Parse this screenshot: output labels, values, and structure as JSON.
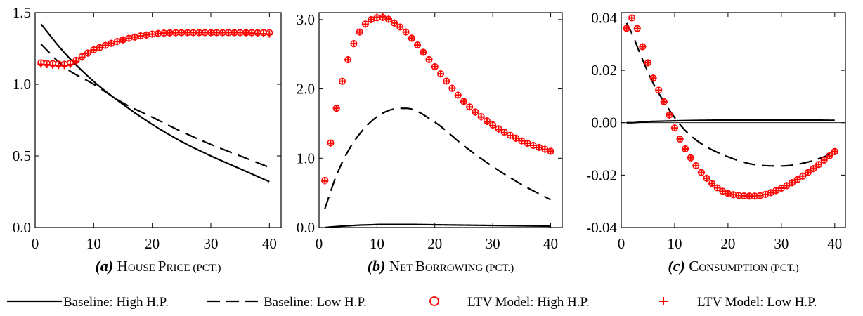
{
  "legend": [
    {
      "name": "Baseline: High H.P.",
      "style": "solid"
    },
    {
      "name": "Baseline: Low H.P.",
      "style": "dashed"
    },
    {
      "name": "LTV Model: High H.P.",
      "style": "circle"
    },
    {
      "name": "LTV Model: Low H.P.",
      "style": "plus"
    }
  ],
  "colors": {
    "baseline": "#000000",
    "ltv": "#ff0000"
  },
  "chart_data": [
    {
      "type": "line",
      "caption_letter": "(a)",
      "caption_big": [
        "H",
        "P"
      ],
      "caption_small": [
        "OUSE ",
        "RICE "
      ],
      "caption_tail": "(PCT.)",
      "xlim": [
        0,
        42
      ],
      "ylim": [
        0,
        1.5
      ],
      "xticks": [
        0,
        10,
        20,
        30,
        40
      ],
      "yticks": [
        0,
        0.5,
        1.0,
        1.5
      ],
      "ytick_labels": [
        "0.0",
        "0.5",
        "1.0",
        "1.5"
      ],
      "zero_line": false,
      "x": [
        1,
        5,
        10,
        15,
        20,
        25,
        30,
        35,
        40
      ],
      "series": [
        {
          "name": "Baseline: High H.P.",
          "values": [
            1.42,
            1.22,
            1.02,
            0.86,
            0.72,
            0.6,
            0.5,
            0.41,
            0.32
          ]
        },
        {
          "name": "Baseline: Low H.P.",
          "values": [
            1.28,
            1.12,
            1.0,
            0.87,
            0.77,
            0.67,
            0.58,
            0.5,
            0.42
          ]
        },
        {
          "name": "LTV Model: High H.P.",
          "values": [
            1.15,
            1.14,
            1.24,
            1.31,
            1.35,
            1.36,
            1.36,
            1.36,
            1.36
          ]
        },
        {
          "name": "LTV Model: Low H.P.",
          "values": [
            1.14,
            1.13,
            1.24,
            1.31,
            1.35,
            1.36,
            1.36,
            1.36,
            1.35
          ]
        }
      ]
    },
    {
      "type": "line",
      "caption_letter": "(b)",
      "caption_big": [
        "N",
        "B"
      ],
      "caption_small": [
        "ET ",
        "ORROWING "
      ],
      "caption_tail": "(PCT.)",
      "xlim": [
        0,
        42
      ],
      "ylim": [
        0,
        3.1
      ],
      "xticks": [
        0,
        10,
        20,
        30,
        40
      ],
      "yticks": [
        0,
        1.0,
        2.0,
        3.0
      ],
      "ytick_labels": [
        "0.0",
        "1.0",
        "2.0",
        "3.0"
      ],
      "zero_line": false,
      "x": [
        1,
        3,
        5,
        7,
        9,
        11,
        13,
        15,
        20,
        25,
        30,
        35,
        40
      ],
      "series": [
        {
          "name": "Baseline: High H.P.",
          "values": [
            0.0,
            0.015,
            0.025,
            0.035,
            0.04,
            0.045,
            0.045,
            0.045,
            0.04,
            0.035,
            0.03,
            0.025,
            0.02
          ]
        },
        {
          "name": "Baseline: Low H.P.",
          "values": [
            0.27,
            0.75,
            1.1,
            1.35,
            1.53,
            1.65,
            1.71,
            1.72,
            1.52,
            1.18,
            0.88,
            0.62,
            0.4
          ]
        },
        {
          "name": "LTV Model: High H.P.",
          "values": [
            0.68,
            1.72,
            2.42,
            2.82,
            3.0,
            3.03,
            2.95,
            2.82,
            2.32,
            1.82,
            1.48,
            1.25,
            1.1
          ]
        },
        {
          "name": "LTV Model: Low H.P.",
          "values": [
            0.67,
            1.72,
            2.42,
            2.82,
            3.0,
            3.04,
            2.95,
            2.82,
            2.32,
            1.82,
            1.47,
            1.25,
            1.1
          ]
        }
      ]
    },
    {
      "type": "line",
      "caption_letter": "(c)",
      "caption_big": [
        "C"
      ],
      "caption_small": [
        "ONSUMPTION "
      ],
      "caption_tail": "(PCT.)",
      "xlim": [
        0,
        42
      ],
      "ylim": [
        -0.04,
        0.042
      ],
      "xticks": [
        0,
        10,
        20,
        30,
        40
      ],
      "yticks": [
        -0.04,
        -0.02,
        0,
        0.02,
        0.04
      ],
      "ytick_labels": [
        "-0.04",
        "-0.02",
        "0.00",
        "0.02",
        "0.04"
      ],
      "zero_line": true,
      "x": [
        1,
        2,
        4,
        6,
        8,
        10,
        12,
        15,
        20,
        25,
        30,
        35,
        40
      ],
      "series": [
        {
          "name": "Baseline: High H.P.",
          "values": [
            0.0,
            0.0,
            0.0003,
            0.0005,
            0.0006,
            0.0007,
            0.0008,
            0.0009,
            0.001,
            0.001,
            0.001,
            0.001,
            0.0009
          ]
        },
        {
          "name": "Baseline: Low H.P.",
          "values": [
            0.038,
            0.034,
            0.024,
            0.015,
            0.008,
            0.002,
            -0.003,
            -0.008,
            -0.013,
            -0.016,
            -0.0165,
            -0.015,
            -0.0115
          ]
        },
        {
          "name": "LTV Model: High H.P.",
          "values": [
            0.036,
            0.04,
            0.029,
            0.017,
            0.008,
            -0.002,
            -0.01,
            -0.019,
            -0.027,
            -0.028,
            -0.025,
            -0.019,
            -0.011
          ]
        },
        {
          "name": "LTV Model: Low H.P.",
          "values": [
            0.036,
            0.04,
            0.029,
            0.017,
            0.008,
            -0.002,
            -0.01,
            -0.019,
            -0.027,
            -0.028,
            -0.025,
            -0.019,
            -0.011
          ]
        }
      ]
    }
  ]
}
